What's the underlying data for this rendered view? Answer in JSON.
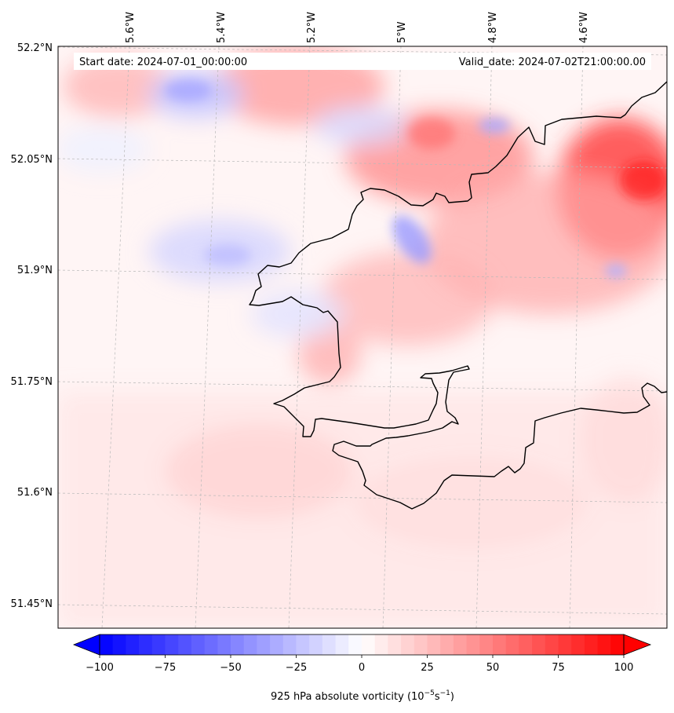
{
  "header": {
    "start_date": "Start date: 2024-07-01_00:00:00",
    "valid_date": "Valid_date: 2024-07-02T21:00:00.00"
  },
  "axes": {
    "lon_labels": [
      "5.6°W",
      "5.4°W",
      "5.2°W",
      "5°W",
      "4.8°W",
      "4.6°W"
    ],
    "lat_labels": [
      "52.2°N",
      "52.05°N",
      "51.9°N",
      "51.75°N",
      "51.6°N",
      "51.45°N"
    ]
  },
  "colorbar": {
    "label": "925 hPa absolute vorticity (10$^{-5}$s$^{-1}$)",
    "label_base": "925 hPa absolute vorticity (10",
    "label_exp1": "−5",
    "label_mid": "s",
    "label_exp2": "−1",
    "label_end": ")",
    "ticks": [
      "−100",
      "−75",
      "−50",
      "−25",
      "0",
      "25",
      "50",
      "75",
      "100"
    ],
    "min": -100,
    "max": 100,
    "cmap": "bwr",
    "extend": "both"
  },
  "colors": {
    "negative": "#0000ff",
    "neutral": "#ffffff",
    "positive": "#ff0000",
    "coastline": "#000000"
  }
}
